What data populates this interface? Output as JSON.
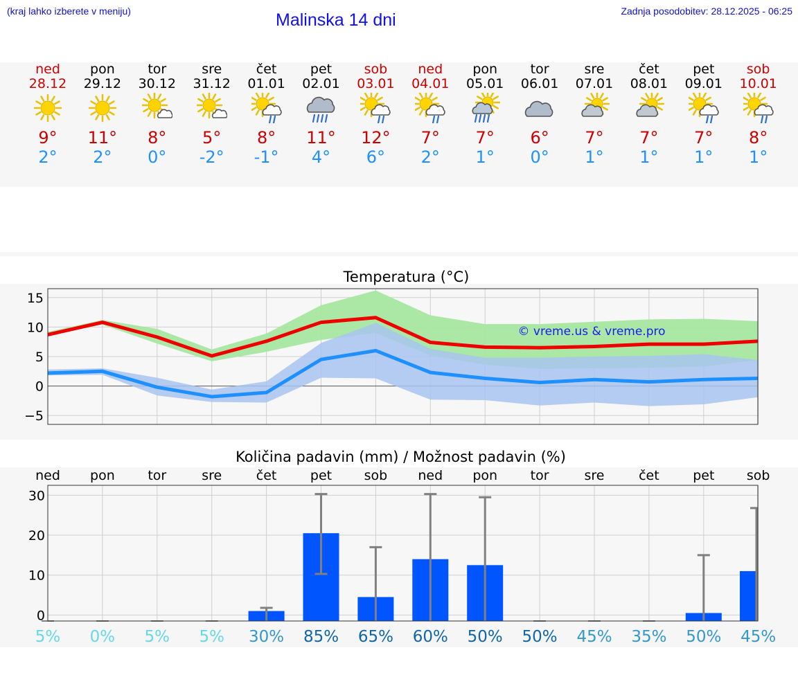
{
  "header": {
    "note": "(kraj lahko izberete v meniju)",
    "title": "Malinska 14 dni",
    "updated": "Zadnja posodobitev: 28.12.2025 - 06:25"
  },
  "days": [
    {
      "name": "ned",
      "date": "28.12",
      "weekend": true,
      "icon": "sun-icon",
      "max": "9°",
      "min": "2°"
    },
    {
      "name": "pon",
      "date": "29.12",
      "weekend": false,
      "icon": "sun-icon",
      "max": "11°",
      "min": "2°"
    },
    {
      "name": "tor",
      "date": "30.12",
      "weekend": false,
      "icon": "sun-small-cloud-icon",
      "max": "8°",
      "min": "0°"
    },
    {
      "name": "sre",
      "date": "31.12",
      "weekend": false,
      "icon": "sun-small-cloud-icon",
      "max": "5°",
      "min": "-2°"
    },
    {
      "name": "čet",
      "date": "01.01",
      "weekend": false,
      "icon": "sun-cloud-light-rain-icon",
      "max": "8°",
      "min": "-1°"
    },
    {
      "name": "pet",
      "date": "02.01",
      "weekend": false,
      "icon": "cloud-heavy-rain-icon",
      "max": "11°",
      "min": "4°"
    },
    {
      "name": "sob",
      "date": "03.01",
      "weekend": true,
      "icon": "sun-cloud-light-rain-icon",
      "max": "12°",
      "min": "6°"
    },
    {
      "name": "ned",
      "date": "04.01",
      "weekend": true,
      "icon": "sun-cloud-light-rain-icon",
      "max": "7°",
      "min": "2°"
    },
    {
      "name": "pon",
      "date": "05.01",
      "weekend": false,
      "icon": "sun-cloud-heavy-rain-icon",
      "max": "7°",
      "min": "1°"
    },
    {
      "name": "tor",
      "date": "06.01",
      "weekend": false,
      "icon": "cloud-icon",
      "max": "6°",
      "min": "0°"
    },
    {
      "name": "sre",
      "date": "07.01",
      "weekend": false,
      "icon": "sun-behind-cloud-icon",
      "max": "7°",
      "min": "1°"
    },
    {
      "name": "čet",
      "date": "08.01",
      "weekend": false,
      "icon": "sun-behind-cloud-icon",
      "max": "7°",
      "min": "1°"
    },
    {
      "name": "pet",
      "date": "09.01",
      "weekend": false,
      "icon": "sun-cloud-light-rain-icon",
      "max": "7°",
      "min": "1°"
    },
    {
      "name": "sob",
      "date": "10.01",
      "weekend": true,
      "icon": "sun-cloud-light-rain-icon",
      "max": "8°",
      "min": "1°"
    }
  ],
  "colors": {
    "weekend": "#cc0000",
    "weekday": "#000000",
    "max": "#cc0000",
    "min": "#1e90ff",
    "max_line": "#ee0000",
    "min_line": "#1e8fff",
    "max_band": "#a6e6a0",
    "min_band": "#a8c4f0",
    "overlap_band": "#7dc4a0",
    "bar": "#0055ff",
    "errbar": "#808080"
  },
  "chart_data": [
    {
      "type": "line",
      "title": "Temperatura (°C)",
      "x": [
        0,
        1,
        2,
        3,
        4,
        5,
        6,
        7,
        8,
        9,
        10,
        11,
        12,
        13
      ],
      "ylim": [
        -6.5,
        16.5
      ],
      "yticks": [
        -5,
        0,
        5,
        10,
        15
      ],
      "ytick_labels": [
        "−5",
        "0",
        "5",
        "10",
        "15"
      ],
      "watermark": "© vreme.us & vreme.pro",
      "series": [
        {
          "name": "max",
          "values": [
            8.7,
            10.8,
            8.3,
            5.1,
            7.6,
            10.8,
            11.6,
            7.4,
            6.6,
            6.5,
            6.7,
            7.1,
            7.1,
            7.6
          ],
          "band_low": [
            8.6,
            10.4,
            7.2,
            4.2,
            5.8,
            7.8,
            9.0,
            5.2,
            3.6,
            2.9,
            3.0,
            3.1,
            3.3,
            4.4
          ],
          "band_high": [
            9.2,
            11.2,
            9.7,
            6.2,
            8.9,
            13.7,
            16.2,
            12.0,
            10.5,
            10.5,
            10.9,
            11.3,
            11.4,
            11.0
          ]
        },
        {
          "name": "min",
          "values": [
            2.2,
            2.5,
            -0.2,
            -1.8,
            -1.1,
            4.5,
            6.0,
            2.3,
            1.3,
            0.6,
            1.1,
            0.7,
            1.1,
            1.3
          ],
          "band_low": [
            1.8,
            1.9,
            -1.6,
            -2.7,
            -2.8,
            1.4,
            1.3,
            -2.3,
            -2.4,
            -3.3,
            -2.8,
            -3.4,
            -3.1,
            -1.9
          ],
          "band_high": [
            2.8,
            3.0,
            1.4,
            -0.6,
            0.8,
            7.3,
            10.7,
            6.3,
            4.8,
            4.8,
            5.0,
            5.1,
            5.4,
            4.4
          ]
        }
      ]
    },
    {
      "type": "bar",
      "title": "Količina padavin (mm) / Možnost padavin (%)",
      "categories": [
        "ned",
        "pon",
        "tor",
        "sre",
        "čet",
        "pet",
        "sob",
        "ned",
        "pon",
        "tor",
        "sre",
        "čet",
        "pet",
        "sob"
      ],
      "values": [
        0,
        0,
        0,
        0,
        1,
        20.5,
        4.5,
        14,
        12.5,
        0,
        0,
        0,
        0.5,
        11
      ],
      "err_low": [
        0,
        0,
        0,
        0,
        0,
        10.3,
        0,
        0,
        0,
        0,
        0,
        0,
        0,
        0
      ],
      "err_high": [
        0,
        0,
        0,
        0,
        1.8,
        30.3,
        17,
        30.3,
        29.5,
        0,
        0,
        0,
        15,
        26.8
      ],
      "probability": [
        "5%",
        "0%",
        "5%",
        "5%",
        "30%",
        "85%",
        "65%",
        "60%",
        "50%",
        "50%",
        "45%",
        "35%",
        "50%",
        "45%"
      ],
      "prob_colors": [
        "#66d9e8",
        "#66d9e8",
        "#66d9e8",
        "#66d9e8",
        "#3399cc",
        "#1166aa",
        "#1166aa",
        "#1166aa",
        "#1166aa",
        "#1166aa",
        "#3399cc",
        "#3399cc",
        "#3399cc",
        "#3399cc"
      ],
      "ylim": [
        -1.5,
        32.5
      ],
      "yticks": [
        0,
        10,
        20,
        30
      ],
      "ytick_labels": [
        "0",
        "10",
        "20",
        "30"
      ]
    }
  ]
}
